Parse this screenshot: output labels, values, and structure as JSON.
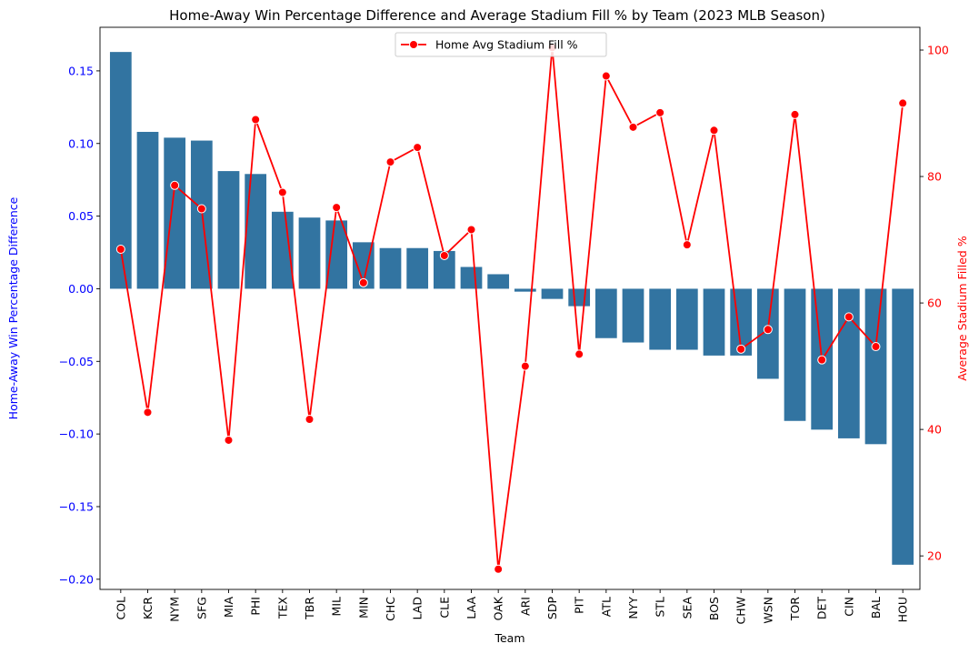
{
  "chart_data": {
    "type": "bar+line",
    "title": "Home-Away Win Percentage Difference and Average Stadium Fill % by Team (2023 MLB Season)",
    "xlabel": "Team",
    "ylabel_left": "Home-Away Win Percentage Difference",
    "ylabel_right": "Average Stadium Filled %",
    "categories": [
      "COL",
      "KCR",
      "NYM",
      "SFG",
      "MIA",
      "PHI",
      "TEX",
      "TBR",
      "MIL",
      "MIN",
      "CHC",
      "LAD",
      "CLE",
      "LAA",
      "OAK",
      "ARI",
      "SDP",
      "PIT",
      "ATL",
      "NYY",
      "STL",
      "SEA",
      "BOS",
      "CHW",
      "WSN",
      "TOR",
      "DET",
      "CIN",
      "BAL",
      "HOU"
    ],
    "bar_series": {
      "name": "",
      "color": "#3274a1",
      "values": [
        0.163,
        0.108,
        0.104,
        0.102,
        0.081,
        0.079,
        0.053,
        0.049,
        0.047,
        0.032,
        0.028,
        0.028,
        0.026,
        0.015,
        0.01,
        -0.002,
        -0.007,
        -0.012,
        -0.034,
        -0.037,
        -0.042,
        -0.042,
        -0.046,
        -0.046,
        -0.062,
        -0.091,
        -0.097,
        -0.103,
        -0.107,
        -0.19
      ]
    },
    "line_series": {
      "name": "Home Avg Stadium Fill %",
      "color": "#ff0000",
      "values": [
        68.5,
        42.7,
        78.6,
        74.9,
        38.3,
        89.0,
        77.5,
        41.6,
        75.1,
        63.2,
        82.3,
        84.6,
        67.5,
        71.6,
        17.9,
        50.0,
        100.4,
        51.9,
        95.9,
        87.8,
        90.1,
        69.2,
        87.3,
        52.7,
        55.8,
        89.8,
        51.0,
        57.8,
        53.1,
        91.6
      ]
    },
    "ylim_left": [
      -0.207,
      0.18
    ],
    "yticks_left": [
      "−0.20",
      "−0.15",
      "−0.10",
      "−0.05",
      "0.00",
      "0.05",
      "0.10",
      "0.15"
    ],
    "yticks_left_values": [
      -0.2,
      -0.15,
      -0.1,
      -0.05,
      0.0,
      0.05,
      0.1,
      0.15
    ],
    "ylim_right": [
      14.7,
      103.6
    ],
    "yticks_right": [
      "20",
      "40",
      "60",
      "80",
      "100"
    ],
    "yticks_right_values": [
      20,
      40,
      60,
      80,
      100
    ],
    "left_axis_color": "#0000ff",
    "right_axis_color": "#ff0000",
    "legend_position": "upper-center",
    "grid": false
  }
}
